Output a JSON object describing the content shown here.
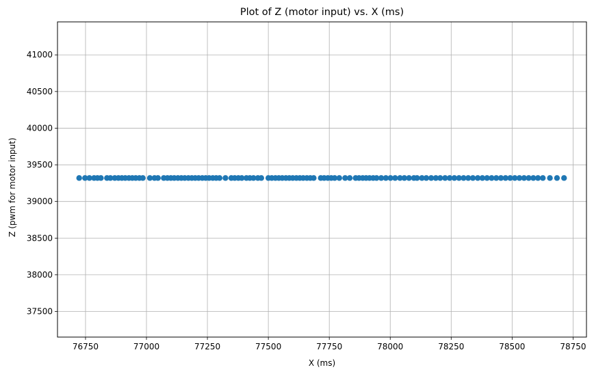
{
  "chart_data": {
    "type": "scatter",
    "title": "Plot of Z (motor input) vs. X (ms)",
    "xlabel": "X (ms)",
    "ylabel": "Z (pwm for motor input)",
    "xlim": [
      76635,
      78805
    ],
    "ylim": [
      37150,
      41450
    ],
    "xticks": [
      76750,
      77000,
      77250,
      77500,
      77750,
      78000,
      78250,
      78500,
      78750
    ],
    "yticks": [
      37500,
      38000,
      38500,
      39000,
      39500,
      40000,
      40500,
      41000
    ],
    "grid": true,
    "color": "#1f77b4",
    "series": [
      {
        "x": [
          76724,
          76748,
          76766,
          76785,
          76799,
          76813,
          76838,
          76852,
          76870,
          76885,
          76899,
          76913,
          76928,
          76942,
          76956,
          76971,
          76985,
          77014,
          77033,
          77047,
          77071,
          77086,
          77100,
          77114,
          77129,
          77143,
          77157,
          77172,
          77186,
          77200,
          77214,
          77229,
          77243,
          77257,
          77272,
          77286,
          77300,
          77324,
          77348,
          77362,
          77377,
          77391,
          77410,
          77424,
          77439,
          77457,
          77471,
          77500,
          77514,
          77529,
          77543,
          77557,
          77572,
          77586,
          77600,
          77615,
          77629,
          77643,
          77658,
          77672,
          77686,
          77715,
          77729,
          77744,
          77758,
          77772,
          77791,
          77815,
          77834,
          77858,
          77872,
          77887,
          77901,
          77915,
          77930,
          77944,
          77963,
          77982,
          78001,
          78020,
          78040,
          78058,
          78077,
          78097,
          78110,
          78130,
          78148,
          78168,
          78187,
          78205,
          78225,
          78244,
          78263,
          78282,
          78301,
          78320,
          78339,
          78359,
          78378,
          78397,
          78416,
          78435,
          78454,
          78473,
          78492,
          78511,
          78530,
          78549,
          78568,
          78587,
          78606,
          78626,
          78655,
          78684,
          78713
        ],
        "y": [
          39320,
          39320,
          39320,
          39320,
          39320,
          39320,
          39320,
          39320,
          39320,
          39320,
          39320,
          39320,
          39320,
          39320,
          39320,
          39320,
          39320,
          39320,
          39320,
          39320,
          39320,
          39320,
          39320,
          39320,
          39320,
          39320,
          39320,
          39320,
          39320,
          39320,
          39320,
          39320,
          39320,
          39320,
          39320,
          39320,
          39320,
          39320,
          39320,
          39320,
          39320,
          39320,
          39320,
          39320,
          39320,
          39320,
          39320,
          39320,
          39320,
          39320,
          39320,
          39320,
          39320,
          39320,
          39320,
          39320,
          39320,
          39320,
          39320,
          39320,
          39320,
          39320,
          39320,
          39320,
          39320,
          39320,
          39320,
          39320,
          39320,
          39320,
          39320,
          39320,
          39320,
          39320,
          39320,
          39320,
          39320,
          39320,
          39320,
          39320,
          39320,
          39320,
          39320,
          39320,
          39320,
          39320,
          39320,
          39320,
          39320,
          39320,
          39320,
          39320,
          39320,
          39320,
          39320,
          39320,
          39320,
          39320,
          39320,
          39320,
          39320,
          39320,
          39320,
          39320,
          39320,
          39320,
          39320,
          39320,
          39320,
          39320,
          39320,
          39320,
          39320,
          39320,
          39320
        ]
      }
    ]
  }
}
